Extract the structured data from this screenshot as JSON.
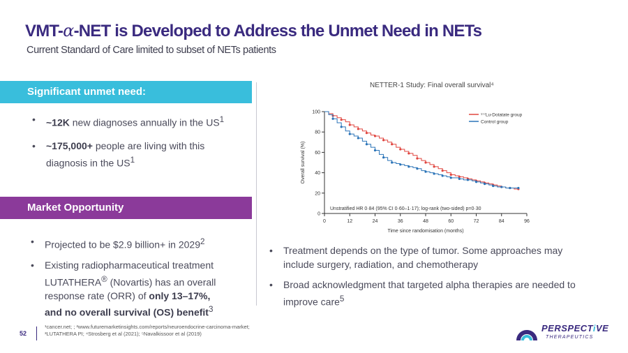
{
  "header": {
    "title_part1": "VMT-",
    "title_alpha": "α",
    "title_part2": "-NET is Developed to Address the Unmet Need in NETs",
    "subtitle": "Current Standard of Care limited to subset of NETs patients"
  },
  "need": {
    "heading": "Significant unmet need:",
    "item1_bold": "~12K",
    "item1_text": " new diagnoses annually in the US",
    "item1_sup": "1",
    "item2_bold": "~175,000+",
    "item2_text": " people are living with this diagnosis in the US",
    "item2_sup": "1"
  },
  "market": {
    "heading": "Market Opportunity",
    "item1_text": "Projected to be $2.9 billion+ in 2029",
    "item1_sup": "2",
    "item2_pre": "Existing radiopharmaceutical treatment LUTATHERA",
    "item2_reg": "®",
    "item2_mid": " (Novartis) has an overall response rate (ORR) of ",
    "item2_bold": "only 13–17%, and no overall survival (OS) benefit",
    "item2_sup": "3"
  },
  "right": {
    "item1": "Treatment depends on the type of tumor. Some approaches may include surgery, radiation, and chemotherapy",
    "item2_text": "Broad acknowledgment that targeted alpha therapies are needed to improve care",
    "item2_sup": "5"
  },
  "chart_data": {
    "type": "line",
    "title": "NETTER-1 Study: Final overall survival⁴",
    "xlabel": "Time since randomisation (months)",
    "ylabel": "Overall survival (%)",
    "xlim": [
      0,
      96
    ],
    "ylim": [
      0,
      100
    ],
    "xticks": [
      "0",
      "12",
      "24",
      "36",
      "48",
      "60",
      "72",
      "84",
      "96"
    ],
    "yticks": [
      "0",
      "20",
      "40",
      "60",
      "80",
      "100"
    ],
    "annotation": "Unstratified HR 0·84 (95% CI 0·60–1·17); log-rank (two-sided) p=0·30",
    "series": [
      {
        "name": "¹⁷⁷Lu-Dotatate group",
        "color": "#e0453f",
        "x": [
          0,
          2,
          4,
          6,
          8,
          10,
          12,
          14,
          16,
          18,
          20,
          22,
          24,
          26,
          28,
          30,
          32,
          34,
          36,
          38,
          40,
          42,
          44,
          46,
          48,
          50,
          52,
          54,
          56,
          58,
          60,
          62,
          64,
          66,
          68,
          70,
          72,
          74,
          76,
          78,
          80,
          82,
          84,
          86,
          88,
          90,
          92
        ],
        "y": [
          100,
          98,
          96,
          94,
          92,
          90,
          87,
          85,
          83,
          81,
          79,
          77,
          76,
          74,
          72,
          70,
          68,
          65,
          63,
          61,
          59,
          57,
          54,
          52,
          50,
          48,
          46,
          44,
          42,
          40,
          38,
          37,
          36,
          35,
          34,
          33,
          32,
          31,
          30,
          29,
          28,
          27,
          26,
          25,
          25,
          24,
          24
        ]
      },
      {
        "name": "Control group",
        "color": "#2b74b8",
        "x": [
          0,
          2,
          4,
          6,
          8,
          10,
          12,
          14,
          16,
          18,
          20,
          22,
          24,
          26,
          28,
          30,
          32,
          34,
          36,
          38,
          40,
          42,
          44,
          46,
          48,
          50,
          52,
          54,
          56,
          58,
          60,
          62,
          64,
          66,
          68,
          70,
          72,
          74,
          76,
          78,
          80,
          82,
          84,
          86,
          88,
          90,
          92
        ],
        "y": [
          100,
          97,
          93,
          89,
          85,
          81,
          78,
          76,
          74,
          71,
          68,
          65,
          62,
          58,
          55,
          52,
          50,
          49,
          48,
          47,
          46,
          45,
          44,
          42,
          41,
          40,
          39,
          38,
          37,
          36,
          35,
          35,
          34,
          33,
          33,
          32,
          31,
          30,
          29,
          28,
          27,
          26,
          26,
          25,
          25,
          25,
          25
        ]
      }
    ]
  },
  "footer": {
    "page_number": "52",
    "footnote_line1": "¹cancer.net; ; ²www.futuremarketinsights.com/reports/neuroendocrine-carcinoma-market;",
    "footnote_line2": "³LUTATHERA PI; ⁴Strosberg et al (2021); ⁵Navalkissoor et al (2019)"
  },
  "logo": {
    "word_a": "PERSPECT",
    "word_i": "i",
    "word_b": "VE",
    "sub": "THERAPEUTICS",
    "color_primary": "#3a2a7f",
    "color_accent": "#39bedc"
  }
}
